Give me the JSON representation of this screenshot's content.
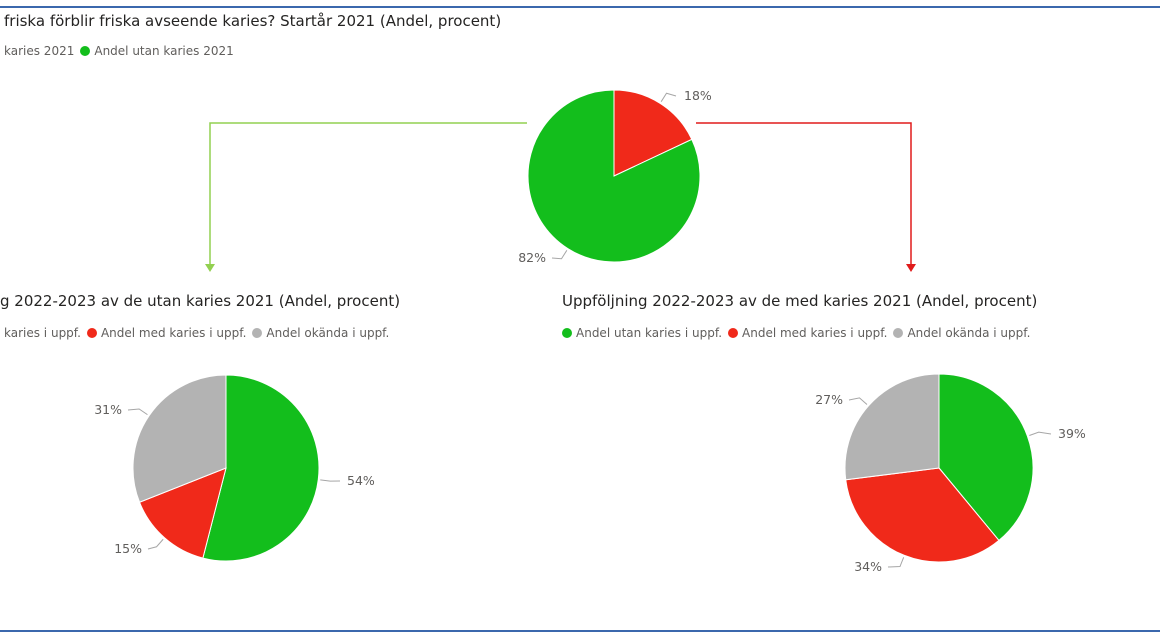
{
  "colors": {
    "green": "#13be1c",
    "red": "#f0291a",
    "grey": "#b3b3b3",
    "arrow_green": "#92d050",
    "arrow_red": "#e01b1b",
    "frame": "#3b68ad"
  },
  "chart_data": [
    {
      "type": "pie",
      "title": "friska förblir friska avseende karies? Startår 2021 (Andel, procent)",
      "legend": [
        {
          "label": "karies 2021",
          "color": "#f0291a"
        },
        {
          "label": "Andel utan karies 2021",
          "color": "#13be1c"
        }
      ],
      "slices": [
        {
          "name": "karies 2021",
          "value": 18,
          "label": "18%",
          "color": "#f0291a"
        },
        {
          "name": "Andel utan karies 2021",
          "value": 82,
          "label": "82%",
          "color": "#13be1c"
        }
      ]
    },
    {
      "type": "pie",
      "title": "g 2022-2023 av de utan karies 2021 (Andel, procent)",
      "legend": [
        {
          "label": "karies i uppf.",
          "color": "#13be1c"
        },
        {
          "label": "Andel med karies i uppf.",
          "color": "#f0291a"
        },
        {
          "label": "Andel okända i uppf.",
          "color": "#b3b3b3"
        }
      ],
      "slices": [
        {
          "name": "karies i uppf.",
          "value": 54,
          "label": "54%",
          "color": "#13be1c"
        },
        {
          "name": "Andel med karies i uppf.",
          "value": 15,
          "label": "15%",
          "color": "#f0291a"
        },
        {
          "name": "Andel okända i uppf.",
          "value": 31,
          "label": "31%",
          "color": "#b3b3b3"
        }
      ]
    },
    {
      "type": "pie",
      "title": "Uppföljning 2022-2023 av de med karies 2021 (Andel, procent)",
      "legend": [
        {
          "label": "Andel utan karies i uppf.",
          "color": "#13be1c"
        },
        {
          "label": "Andel med karies i uppf.",
          "color": "#f0291a"
        },
        {
          "label": "Andel okända i uppf.",
          "color": "#b3b3b3"
        }
      ],
      "slices": [
        {
          "name": "Andel utan karies i uppf.",
          "value": 39,
          "label": "39%",
          "color": "#13be1c"
        },
        {
          "name": "Andel med karies i uppf.",
          "value": 34,
          "label": "34%",
          "color": "#f0291a"
        },
        {
          "name": "Andel okända i uppf.",
          "value": 27,
          "label": "27%",
          "color": "#b3b3b3"
        }
      ]
    }
  ]
}
